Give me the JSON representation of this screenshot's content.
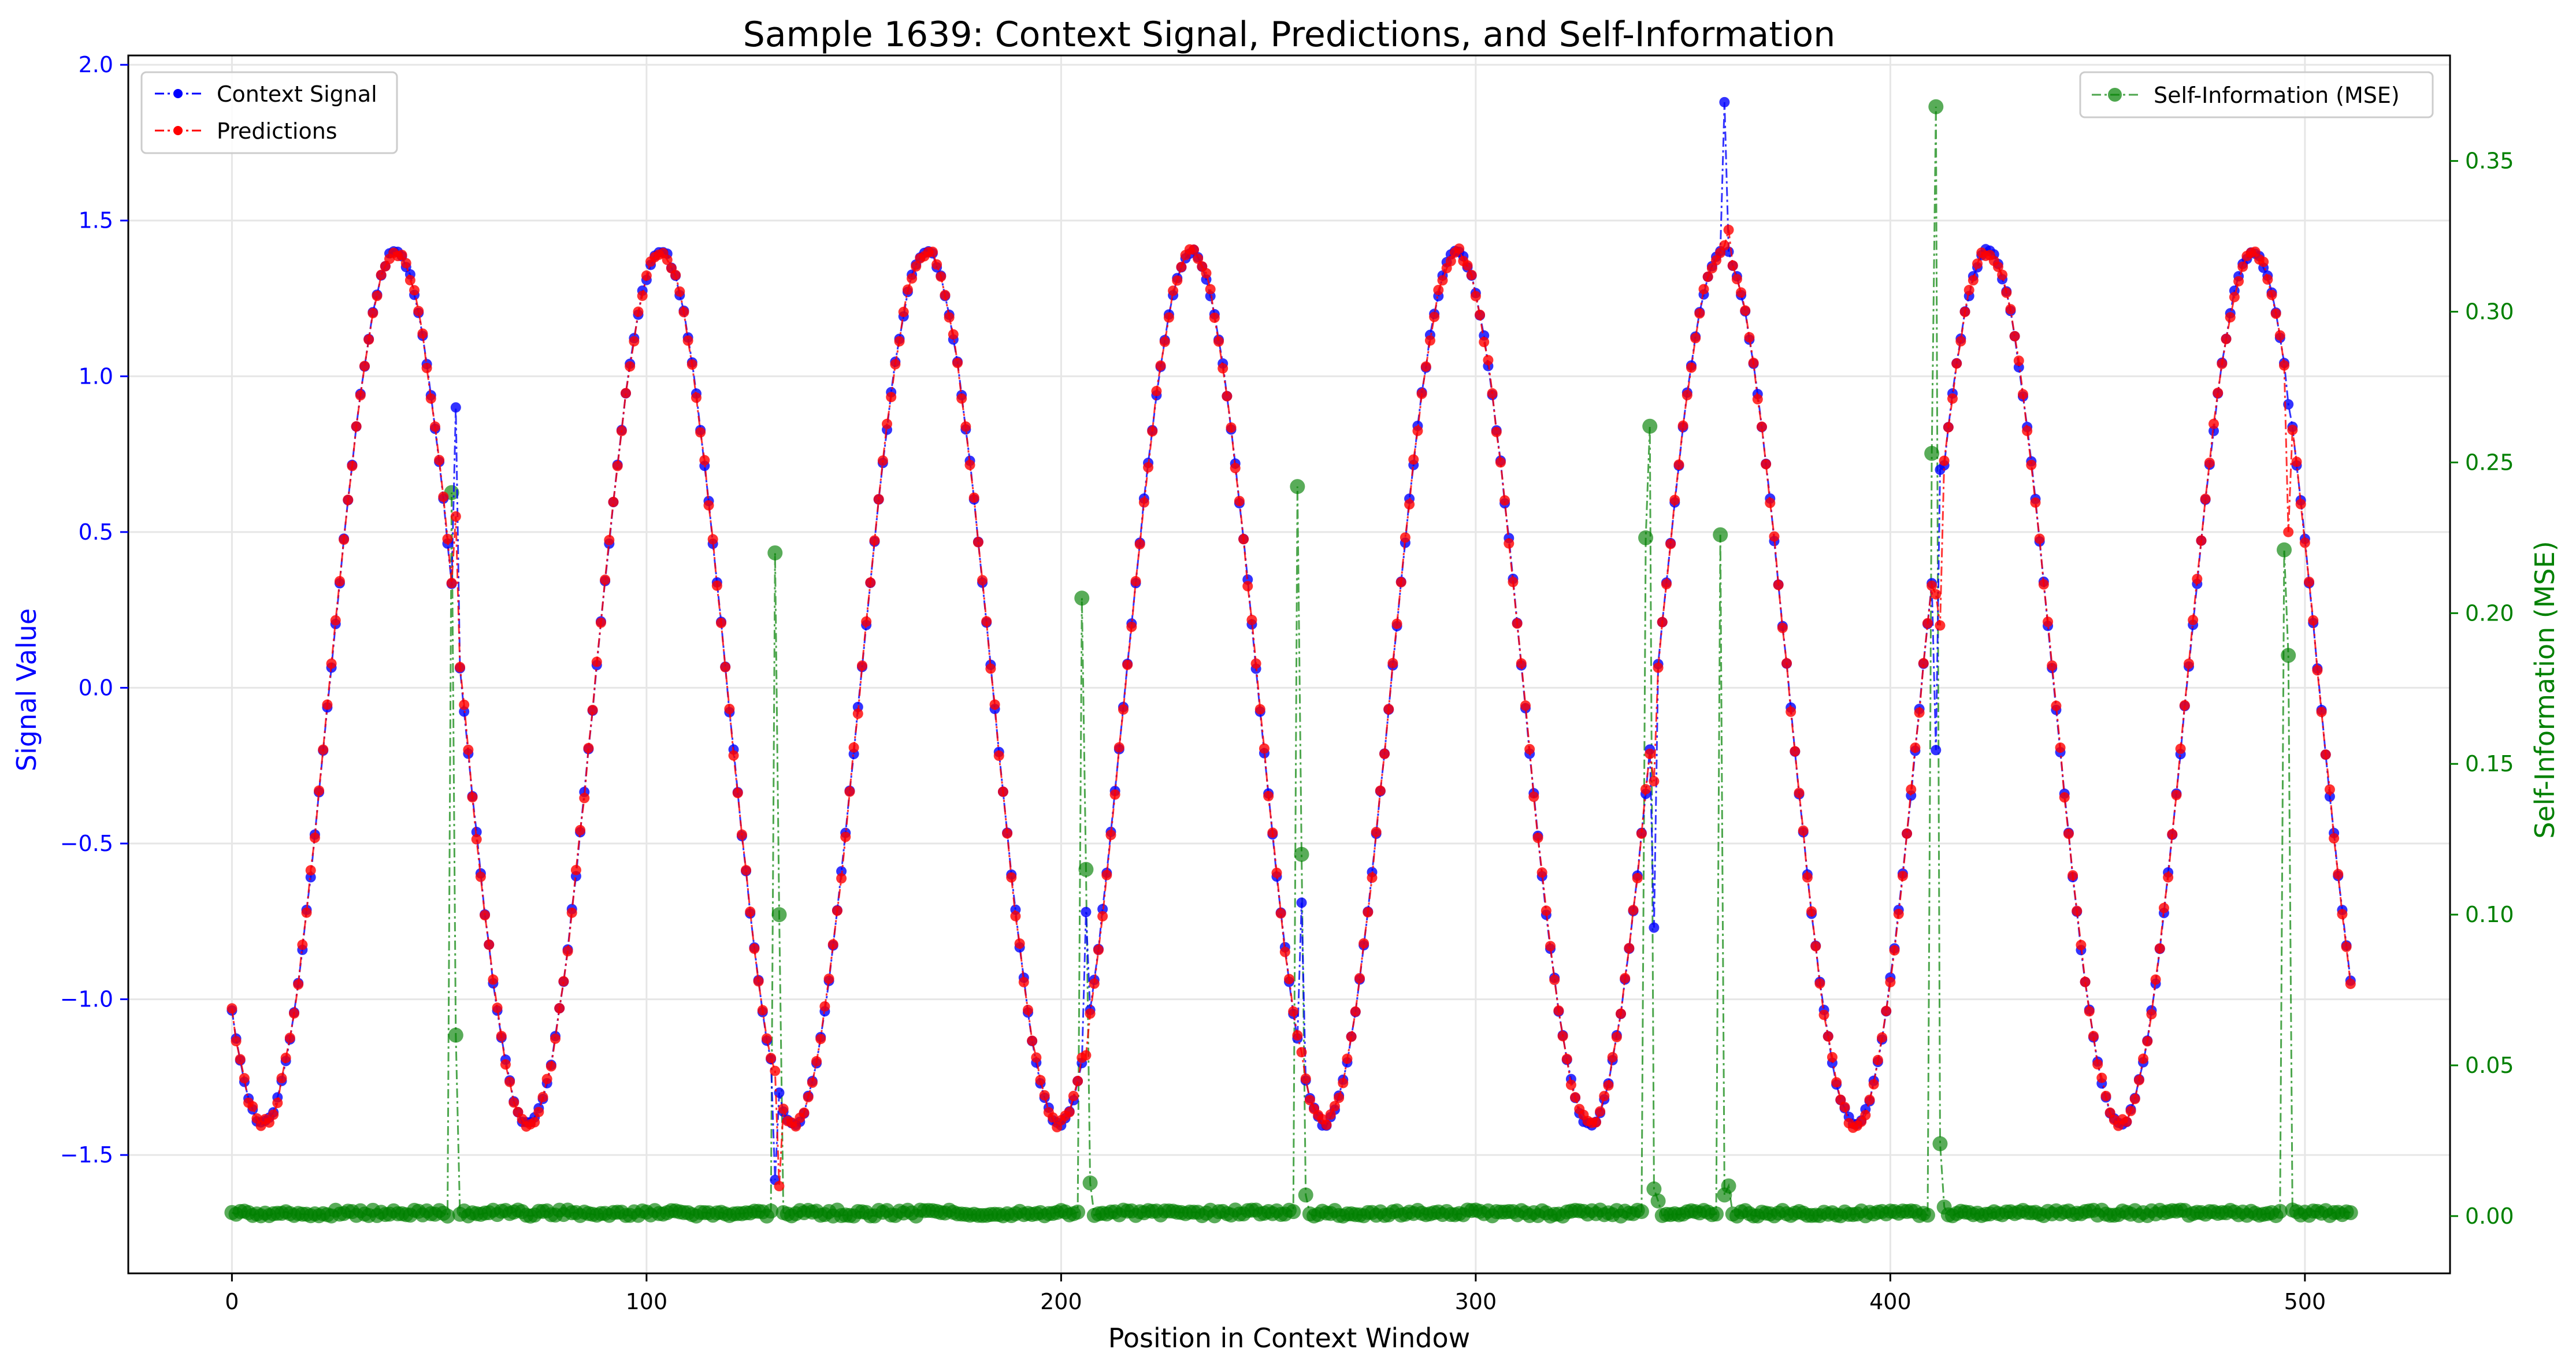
{
  "chart_data": {
    "type": "line",
    "title": "Sample 1639: Context Signal, Predictions, and Self-Information",
    "xlabel": "Position in Context Window",
    "ylabel": "Signal Value",
    "y2label": "Self-Information (MSE)",
    "xlim": [
      -25,
      535
    ],
    "ylim": [
      -1.88,
      2.03
    ],
    "y2lim": [
      -0.019,
      0.385
    ],
    "xticks": [
      0,
      100,
      200,
      300,
      400,
      500
    ],
    "yticks": [
      -1.5,
      -1.0,
      -0.5,
      0.0,
      0.5,
      1.0,
      1.5,
      2.0
    ],
    "yticklabels": [
      "−1.5",
      "−1.0",
      "−0.5",
      "0.0",
      "0.5",
      "1.0",
      "1.5",
      "2.0"
    ],
    "y2ticks": [
      0.0,
      0.05,
      0.1,
      0.15,
      0.2,
      0.25,
      0.3,
      0.35
    ],
    "y2ticklabels": [
      "0.00",
      "0.05",
      "0.10",
      "0.15",
      "0.20",
      "0.25",
      "0.30",
      "0.35"
    ],
    "grid": true,
    "legend_left": {
      "placement": "upper-left",
      "entries": [
        "Context Signal",
        "Predictions"
      ]
    },
    "legend_right": {
      "placement": "upper-right",
      "entries": [
        "Self-Information (MSE)"
      ]
    },
    "signal": {
      "period": 64,
      "amplitude": 1.4,
      "phase_x": 23.5,
      "n_points": 512
    },
    "series": [
      {
        "name": "Context Signal",
        "color": "#0000ff",
        "axis": "left"
      },
      {
        "name": "Predictions",
        "color": "#ff0000",
        "axis": "left"
      },
      {
        "name": "Self-Information (MSE)",
        "color": "#008000",
        "axis": "right"
      }
    ],
    "anomalies": [
      {
        "x": 54,
        "context": 0.9,
        "prediction": 0.55
      },
      {
        "x": 131,
        "context": -1.58,
        "prediction": -1.23
      },
      {
        "x": 132,
        "context": -1.3,
        "prediction": -1.6
      },
      {
        "x": 206,
        "context": -0.72,
        "prediction": -1.18
      },
      {
        "x": 258,
        "context": -0.69,
        "prediction": -1.17
      },
      {
        "x": 343,
        "context": -0.77,
        "prediction": -0.3
      },
      {
        "x": 360,
        "context": 1.88,
        "prediction": 1.42
      },
      {
        "x": 361,
        "context": 1.4,
        "prediction": 1.47
      },
      {
        "x": 411,
        "context": -0.2,
        "prediction": 0.3
      },
      {
        "x": 412,
        "context": 0.7,
        "prediction": 0.2
      },
      {
        "x": 496,
        "context": 0.91,
        "prediction": 0.5
      }
    ],
    "mse_spikes": [
      {
        "x": 52,
        "value": 0.0
      },
      {
        "x": 53,
        "value": 0.24
      },
      {
        "x": 54,
        "value": 0.06
      },
      {
        "x": 131,
        "value": 0.22
      },
      {
        "x": 132,
        "value": 0.1
      },
      {
        "x": 205,
        "value": 0.205
      },
      {
        "x": 206,
        "value": 0.115
      },
      {
        "x": 207,
        "value": 0.011
      },
      {
        "x": 257,
        "value": 0.242
      },
      {
        "x": 258,
        "value": 0.12
      },
      {
        "x": 259,
        "value": 0.007
      },
      {
        "x": 341,
        "value": 0.225
      },
      {
        "x": 342,
        "value": 0.262
      },
      {
        "x": 343,
        "value": 0.009
      },
      {
        "x": 344,
        "value": 0.005
      },
      {
        "x": 359,
        "value": 0.226
      },
      {
        "x": 360,
        "value": 0.007
      },
      {
        "x": 361,
        "value": 0.01
      },
      {
        "x": 410,
        "value": 0.253
      },
      {
        "x": 411,
        "value": 0.368
      },
      {
        "x": 412,
        "value": 0.024
      },
      {
        "x": 413,
        "value": 0.003
      },
      {
        "x": 495,
        "value": 0.221
      },
      {
        "x": 496,
        "value": 0.186
      },
      {
        "x": 497,
        "value": 0.002
      }
    ]
  }
}
